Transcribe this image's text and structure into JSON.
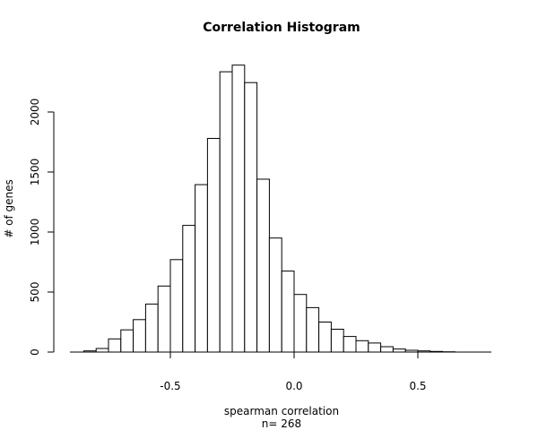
{
  "chart_data": {
    "type": "bar",
    "title": "Correlation Histogram",
    "xlabel": "spearman correlation",
    "subtitle": "n= 268",
    "ylabel": "# of genes",
    "bin_width": 0.05,
    "bins_start": [
      -0.85,
      -0.8,
      -0.75,
      -0.7,
      -0.65,
      -0.6,
      -0.55,
      -0.5,
      -0.45,
      -0.4,
      -0.35,
      -0.3,
      -0.25,
      -0.2,
      -0.15,
      -0.1,
      -0.05,
      0.0,
      0.05,
      0.1,
      0.15,
      0.2,
      0.25,
      0.3,
      0.35,
      0.4,
      0.45,
      0.5,
      0.55,
      0.6
    ],
    "values": [
      10,
      30,
      110,
      185,
      270,
      400,
      550,
      770,
      1055,
      1395,
      1780,
      2335,
      2390,
      2245,
      1440,
      950,
      675,
      480,
      370,
      250,
      190,
      130,
      95,
      75,
      45,
      25,
      15,
      10,
      5,
      2
    ],
    "xlim": [
      -0.9,
      0.8
    ],
    "ylim": [
      0,
      2400
    ],
    "xticks": [
      -0.5,
      0.0,
      0.5
    ],
    "xtick_labels": [
      "-0.5",
      "0.0",
      "0.5"
    ],
    "yticks": [
      0,
      500,
      1000,
      1500,
      2000
    ],
    "ytick_labels": [
      "0",
      "500",
      "1000",
      "1500",
      "2000"
    ],
    "grid": false,
    "legend": "none"
  }
}
